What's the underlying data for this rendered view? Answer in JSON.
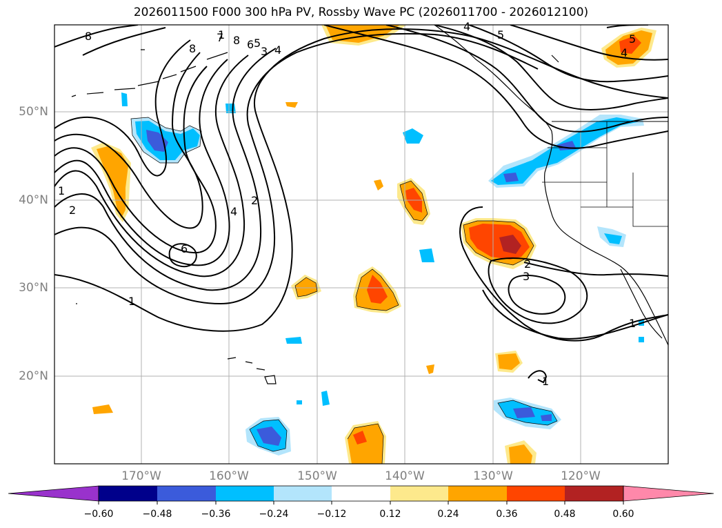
{
  "title": "2026011500 F000 300 hPa PV, Rossby Wave PC (2026011700 - 2026012100)",
  "map": {
    "lat_labels": [
      "50°N",
      "40°N",
      "30°N",
      "20°N"
    ],
    "lon_labels": [
      "170°W",
      "160°W",
      "150°W",
      "140°W",
      "130°W",
      "120°W"
    ],
    "contour_labels": [
      "8",
      "8",
      "8",
      "7",
      "6",
      "5",
      "4",
      "3",
      "5",
      "4",
      "5",
      "4",
      "1",
      "2",
      "2",
      "4",
      "6",
      "1",
      "1",
      "2",
      "3",
      "1",
      "1"
    ],
    "colors": {
      "pos_light": "#fde98c",
      "pos_mid": "#ffa500",
      "pos_strong": "#ff4500",
      "pos_max": "#b22222",
      "neg_light": "#b3e5fc",
      "neg_mid": "#00bfff",
      "neg_strong": "#3b5bdb",
      "coast": "#000000",
      "grid": "#b0b0b0"
    }
  },
  "colorbar": {
    "ticks": [
      "−0.60",
      "−0.48",
      "−0.36",
      "−0.24",
      "−0.12",
      "0.12",
      "0.24",
      "0.36",
      "0.48",
      "0.60"
    ],
    "colors": [
      "#9932cc",
      "#00008b",
      "#3b5bdb",
      "#00bfff",
      "#b3e5fc",
      "#ffffff",
      "#fde98c",
      "#ffa500",
      "#ff4500",
      "#b22222",
      "#ff88aa"
    ]
  }
}
